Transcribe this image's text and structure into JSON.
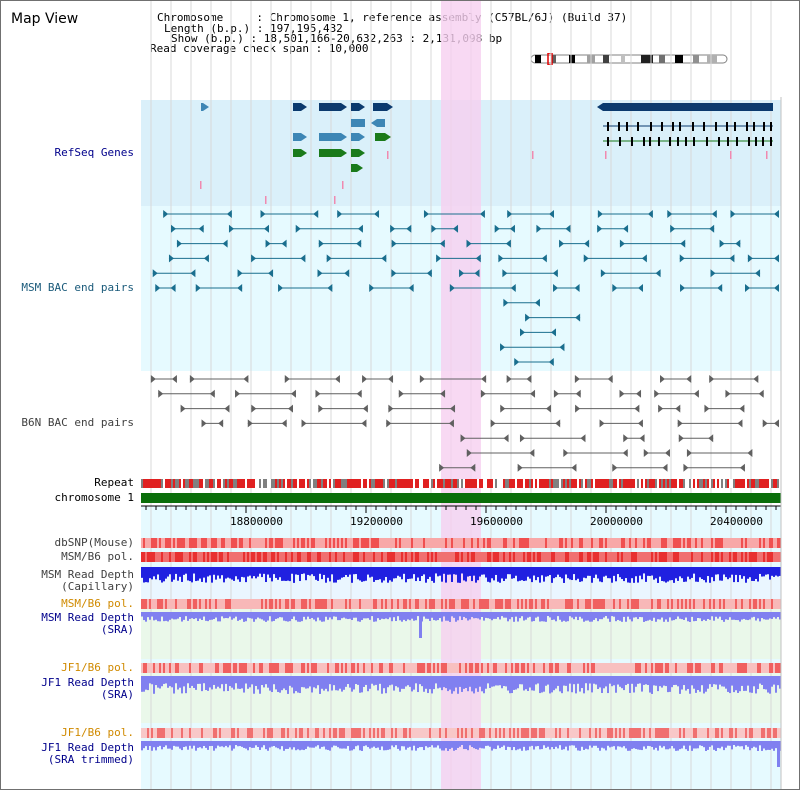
{
  "title": "Map View",
  "header": {
    "lines": [
      "Chromosome     : Chromosome 1, reference assembly (C57BL/6J) (Build 37)",
      "Length (b.p.) : 197,195,432",
      "Show (b.p.) : 18,501,166-20,632,263 : 2,131,098 bp",
      "Read coverage check span : 10,000"
    ]
  },
  "colors": {
    "refseq_bg": "#daf0fa",
    "bac_bg": "#e6faff",
    "highlight": "#f6d0f0",
    "gene_dark": "#0b3a6e",
    "gene_mid": "#3d86b5",
    "gene_green": "#1a7a1a",
    "msm_pair": "#1a6e8e",
    "b6n_pair": "#606060",
    "repeat_red": "#e02020",
    "chrom_green": "#0a6e0a",
    "snp_red": "#e84040",
    "depth_blue": "#2020e0",
    "depth_light": "#8080f0",
    "pol_orange": "#d08a00",
    "label_blue": "#00008b"
  },
  "tracks": {
    "refseq": "RefSeq Genes",
    "msm_bac": "MSM BAC end pairs",
    "b6n_bac": "B6N BAC end pairs",
    "repeat": "Repeat",
    "chromosome": "chromosome 1",
    "dbsnp": "dbSNP(Mouse)",
    "msm_b6_pol_1": "MSM/B6 pol.",
    "msm_depth_cap_1": "MSM Read Depth",
    "msm_depth_cap_2": "(Capillary)",
    "msm_b6_pol_2": "MSM/B6 pol.",
    "msm_depth_sra_1": "MSM Read Depth",
    "msm_depth_sra_2": "(SRA)",
    "jf1_b6_pol_1": "JF1/B6 pol.",
    "jf1_depth_sra_1": "JF1 Read Depth",
    "jf1_depth_sra_2": "(SRA)",
    "jf1_b6_pol_2": "JF1/B6 pol.",
    "jf1_depth_trim_1": "JF1 Read Depth",
    "jf1_depth_trim_2": "(SRA trimmed)"
  },
  "ruler": {
    "ticks": [
      "18800000",
      "19200000",
      "19600000",
      "20000000",
      "20400000"
    ]
  }
}
